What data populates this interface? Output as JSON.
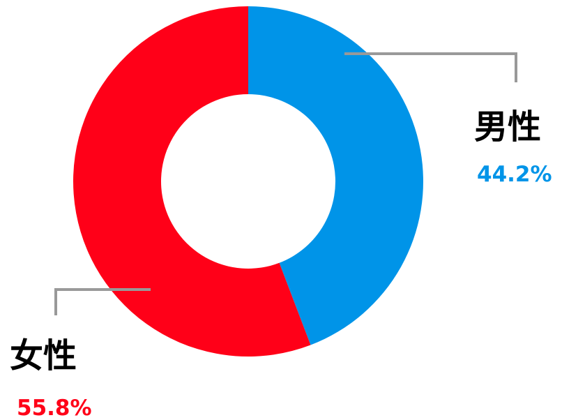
{
  "chart_data": {
    "type": "pie",
    "variant": "donut",
    "start": "top",
    "direction": "clockwise",
    "slices": [
      {
        "label": "男性",
        "value": 44.2,
        "value_label": "44.2%",
        "color": "#0094E8"
      },
      {
        "label": "女性",
        "value": 55.8,
        "value_label": "55.8%",
        "color": "#FF0018"
      }
    ],
    "leader_line_color": "#999999"
  }
}
